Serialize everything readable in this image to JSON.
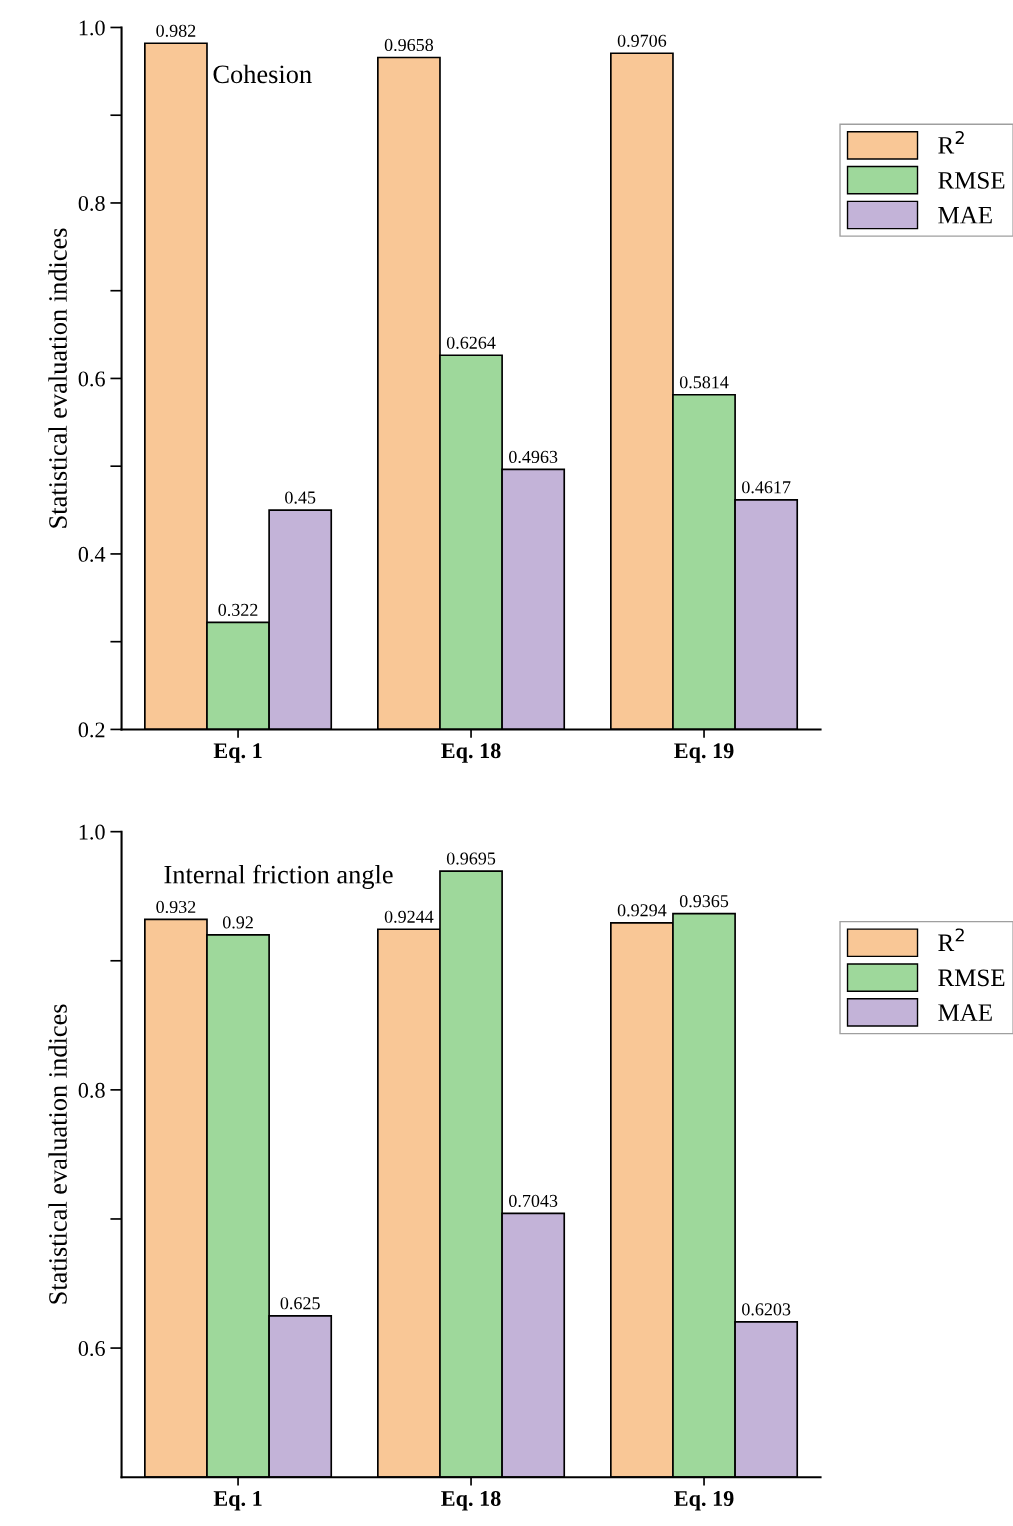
{
  "chart_data": [
    {
      "type": "bar",
      "ylabel": "Statistical evaluation indices",
      "categories": [
        "Eq. 1",
        "Eq. 18",
        "Eq. 19"
      ],
      "series": [
        {
          "name": "R$^{2}$",
          "color": "#f9c796",
          "values": [
            0.982,
            0.9658,
            0.9706
          ]
        },
        {
          "name": "RMSE",
          "color": "#9ed89b",
          "values": [
            0.322,
            0.6264,
            0.5814
          ]
        },
        {
          "name": "MAE",
          "color": "#c3b3d8",
          "values": [
            0.45,
            0.4963,
            0.4617
          ]
        }
      ],
      "ylim": [
        0.2,
        1.0
      ],
      "yticks": [
        0.2,
        {
          "value": 0.3,
          "label": null
        },
        0.4,
        {
          "value": 0.5,
          "label": null
        },
        0.6,
        {
          "value": 0.7,
          "label": null
        },
        0.8,
        {
          "value": 0.9,
          "label": null
        },
        {
          "value": 1.0,
          "label": "1.0"
        }
      ],
      "annotations": [
        "Cohesion"
      ],
      "data_labels": true,
      "legend": "right",
      "grid": false
    },
    {
      "type": "bar",
      "ylabel": "Statistical evaluation indices",
      "categories": [
        "Eq. 1",
        "Eq. 18",
        "Eq. 19"
      ],
      "series": [
        {
          "name": "R$^{2}$",
          "color": "#f9c796",
          "values": [
            0.932,
            0.9244,
            0.9294
          ]
        },
        {
          "name": "RMSE",
          "color": "#9ed89b",
          "values": [
            0.92,
            0.9695,
            0.9365
          ]
        },
        {
          "name": "MAE",
          "color": "#c3b3d8",
          "values": [
            0.625,
            0.7043,
            0.6203
          ]
        }
      ],
      "ylim": [
        0.5,
        1.0
      ],
      "yticks": [
        0.6,
        {
          "value": 0.7,
          "label": null
        },
        0.8,
        {
          "value": 0.9,
          "label": null
        },
        {
          "value": 1.0,
          "label": "1.0"
        }
      ],
      "annotations": [
        "Internal friction angle"
      ],
      "data_labels": true,
      "legend": "right",
      "grid": false
    }
  ]
}
